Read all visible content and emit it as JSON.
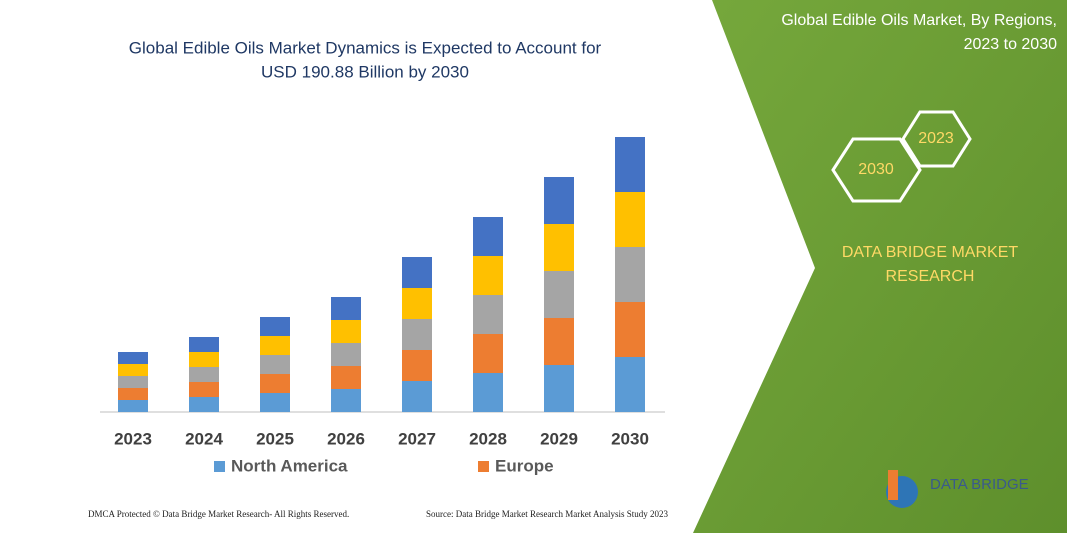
{
  "chart_data": {
    "type": "stacked-bar",
    "title": [
      "Global Edible Oils Market Dynamics is Expected to Account for",
      "USD 190.88 Billion by 2030"
    ],
    "categories": [
      "2023",
      "2024",
      "2025",
      "2026",
      "2027",
      "2028",
      "2029",
      "2030"
    ],
    "series": [
      {
        "name": "North America",
        "color": "#5b9bd5",
        "values": [
          12,
          15,
          19,
          23,
          31,
          39,
          47,
          55
        ]
      },
      {
        "name": "Europe",
        "color": "#ed7d31",
        "values": [
          12,
          15,
          19,
          23,
          31,
          39,
          47,
          55
        ]
      },
      {
        "color": "#a5a5a5",
        "values": [
          12,
          15,
          19,
          23,
          31,
          39,
          47,
          55
        ]
      },
      {
        "color": "#ffc000",
        "values": [
          12,
          15,
          19,
          23,
          31,
          39,
          47,
          55
        ]
      },
      {
        "color": "#4472c4",
        "values": [
          12,
          15,
          19,
          23,
          31,
          39,
          47,
          55
        ]
      }
    ]
  },
  "panel": {
    "title": [
      "Global Edible Oils Market, By Regions,",
      "2023 to 2030"
    ],
    "hexagons": [
      "2023",
      "2030"
    ],
    "brand": [
      "DATA BRIDGE MARKET",
      "RESEARCH"
    ]
  },
  "logo": "DATA BRIDGE",
  "footer": {
    "left": "DMCA Protected © Data Bridge Market Research-  All Rights Reserved.",
    "right": "Source: Data Bridge Market Research  Market Analysis Study 2023"
  }
}
